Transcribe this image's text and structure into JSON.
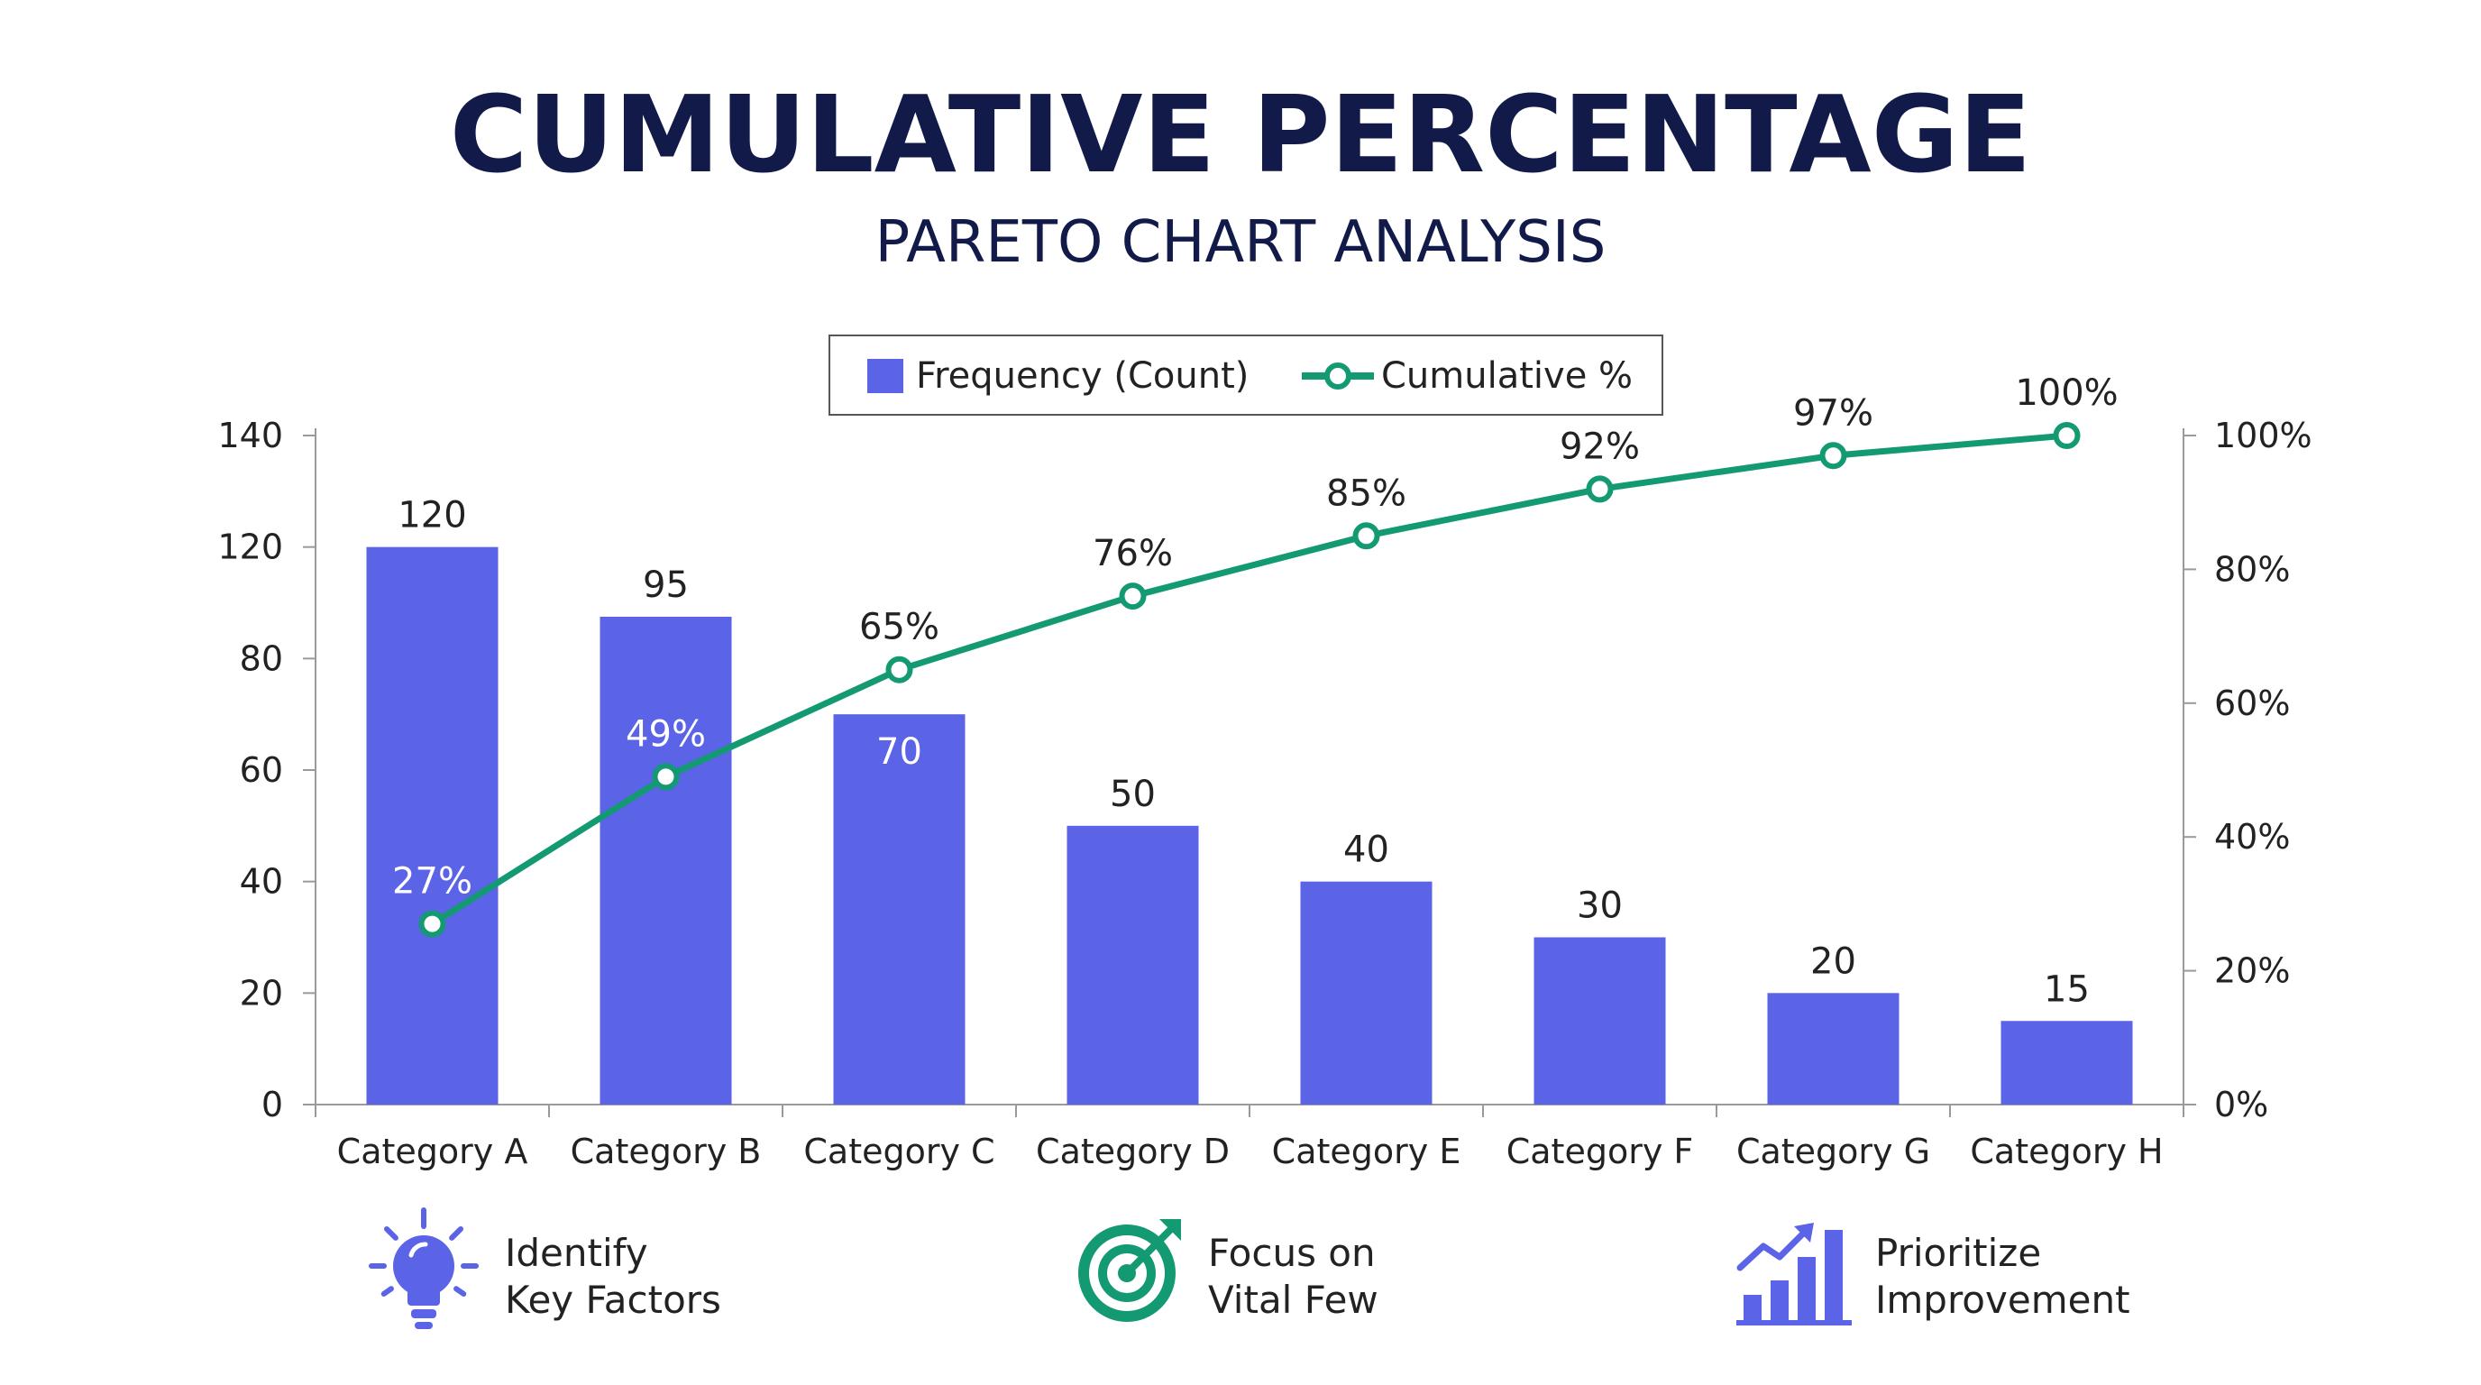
{
  "title": "CUMULATIVE PERCENTAGE",
  "subtitle": "PARETO CHART ANALYSIS",
  "colors": {
    "bar": "#5b63e6",
    "line": "#149a72",
    "title": "#111a48",
    "axis": "#9a9a9a",
    "text": "#222222",
    "legend_border": "#555555"
  },
  "legend": {
    "placement": "top-center",
    "items": [
      {
        "label": "Frequency (Count)",
        "kind": "bar-swatch"
      },
      {
        "label": "Cumulative %",
        "kind": "line-marker"
      }
    ]
  },
  "chart_data": {
    "type": "bar",
    "categories": [
      "Category A",
      "Category B",
      "Category C",
      "Category D",
      "Category E",
      "Category F",
      "Category G",
      "Category H"
    ],
    "series": [
      {
        "name": "Frequency (Count)",
        "type": "bar",
        "axis": "left",
        "values": [
          120,
          95,
          70,
          50,
          40,
          30,
          20,
          15
        ],
        "labels": [
          "120",
          "95",
          "70",
          "50",
          "40",
          "30",
          "20",
          "15"
        ]
      },
      {
        "name": "Cumulative %",
        "type": "line",
        "axis": "right",
        "values": [
          27,
          49,
          65,
          76,
          85,
          92,
          97,
          100
        ],
        "labels": [
          "27%",
          "49%",
          "65%",
          "76%",
          "85%",
          "92%",
          "97%",
          "100%"
        ]
      }
    ],
    "y_left": {
      "ticks": [
        0,
        20,
        40,
        60,
        80,
        120,
        140
      ],
      "tick_labels": [
        "0",
        "20",
        "40",
        "60",
        "80",
        "120",
        "140"
      ]
    },
    "y_right": {
      "range": [
        0,
        100
      ],
      "ticks": [
        0,
        20,
        40,
        60,
        80,
        100
      ],
      "tick_labels": [
        "0%",
        "20%",
        "40%",
        "60%",
        "80%",
        "100%"
      ]
    },
    "grid": false
  },
  "features": [
    {
      "icon": "lightbulb-icon",
      "line1": "Identify",
      "line2": "Key Factors"
    },
    {
      "icon": "target-icon",
      "line1": "Focus on",
      "line2": "Vital Few"
    },
    {
      "icon": "growth-chart-icon",
      "line1": "Prioritize",
      "line2": "Improvement"
    }
  ]
}
